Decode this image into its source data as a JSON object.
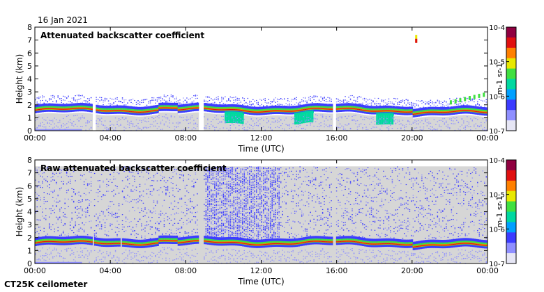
{
  "date_label": "16 Jan 2021",
  "instrument_label": "CT25K ceilometer",
  "colors": {
    "background_gray": "#d6d6d6",
    "colormap": [
      "#e6e6f5",
      "#8f8fff",
      "#3c3cff",
      "#00a0ff",
      "#00d8a0",
      "#40e040",
      "#e8e800",
      "#ff8000",
      "#e01010",
      "#900040"
    ]
  },
  "chart_data": [
    {
      "type": "heatmap",
      "title": "Attenuated backscatter coefficient",
      "xlabel": "Time (UTC)",
      "ylabel": "Height (km)",
      "x_ticks": [
        "00:00",
        "04:00",
        "08:00",
        "12:00",
        "16:00",
        "20:00",
        "00:00"
      ],
      "x_range_hours": [
        0,
        24
      ],
      "y_ticks": [
        "0",
        "1",
        "2",
        "3",
        "4",
        "5",
        "6",
        "7",
        "8"
      ],
      "ylim": [
        0,
        8
      ],
      "colorbar": {
        "label": "m-1 sr-1",
        "scale": "log",
        "range": [
          1e-07,
          0.0001
        ],
        "tick_labels": [
          "10-7",
          "10-6",
          "10-5",
          "10-4"
        ]
      },
      "features": {
        "layer_height_km": 1.4,
        "layer_top_km": 2.0,
        "data_gaps_hours": [
          [
            3.0,
            3.2
          ],
          [
            8.6,
            8.9
          ],
          [
            15.7,
            15.9
          ]
        ],
        "high_cloud_echo": {
          "hour": 20.2,
          "height_km_range": [
            6.8,
            7.4
          ]
        },
        "elevated_layer": {
          "hour_range": [
            22.0,
            23.8
          ],
          "height_km_range": [
            2.2,
            2.8
          ]
        },
        "low_layer_dips_hours": [
          10.5,
          14.2,
          18.5
        ]
      }
    },
    {
      "type": "heatmap",
      "title": "Raw attenuated backscatter coefficient",
      "xlabel": "Time (UTC)",
      "ylabel": "Height (km)",
      "x_ticks": [
        "00:00",
        "04:00",
        "08:00",
        "12:00",
        "16:00",
        "20:00",
        "00:00"
      ],
      "x_range_hours": [
        0,
        24
      ],
      "y_ticks": [
        "0",
        "1",
        "2",
        "3",
        "4",
        "5",
        "6",
        "7",
        "8"
      ],
      "ylim": [
        0,
        8
      ],
      "colorbar": {
        "label": "m-1 sr-1",
        "scale": "log",
        "range": [
          1e-07,
          0.0001
        ],
        "tick_labels": [
          "10-7",
          "10-6",
          "10-5",
          "10-4"
        ]
      },
      "features": {
        "layer_height_km": 1.4,
        "data_top_km": 7.5,
        "noise_max_hours": [
          9.0,
          13.0
        ],
        "data_gaps_hours": [
          [
            3.0,
            3.1
          ],
          [
            4.5,
            4.6
          ],
          [
            8.6,
            8.9
          ],
          [
            15.7,
            15.9
          ]
        ]
      }
    }
  ]
}
